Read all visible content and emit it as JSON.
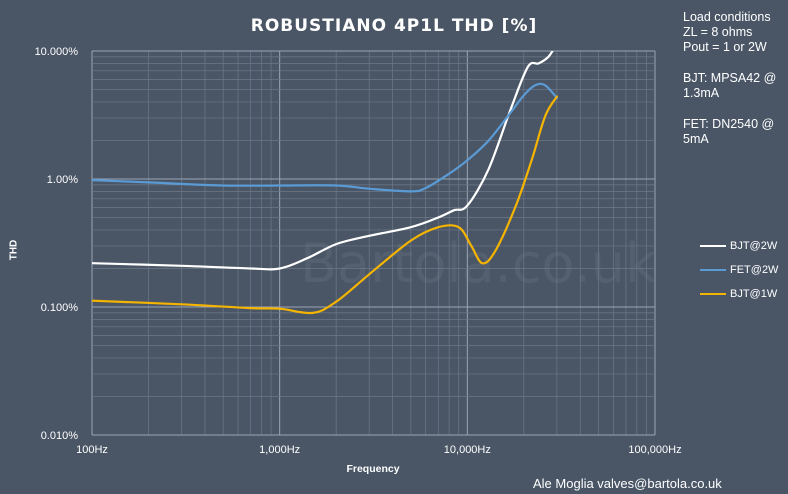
{
  "chart_data": {
    "type": "line",
    "title": "ROBUSTIANO  4P1L THD [%]",
    "xlabel": "Frequency",
    "ylabel": "THD",
    "x_scale": "log",
    "y_scale": "log",
    "xlim": [
      100,
      100000
    ],
    "ylim": [
      0.01,
      10
    ],
    "x_ticks": [
      100,
      1000,
      10000,
      100000
    ],
    "x_tick_labels": [
      "100Hz",
      "1,000Hz",
      "10,000Hz",
      "100,000Hz"
    ],
    "y_ticks": [
      0.01,
      0.1,
      1,
      10
    ],
    "y_tick_labels": [
      "0.010%",
      "0.100%",
      "1.00%",
      "10.000%"
    ],
    "grid": true,
    "legend_position": "right",
    "series": [
      {
        "name": "BJT@2W",
        "color": "#ffffff",
        "x": [
          100,
          300,
          700,
          1000,
          1400,
          2000,
          3000,
          5000,
          7000,
          8500,
          10000,
          13000,
          17000,
          21000,
          24000,
          27000,
          29000
        ],
        "y": [
          0.22,
          0.21,
          0.2,
          0.2,
          0.24,
          0.31,
          0.36,
          0.42,
          0.5,
          0.57,
          0.62,
          1.2,
          3.5,
          7.5,
          8.0,
          9.0,
          10.5
        ]
      },
      {
        "name": "FET@2W",
        "color": "#5b9bd5",
        "x": [
          100,
          200,
          500,
          1000,
          2000,
          3000,
          5000,
          6000,
          8000,
          10000,
          13000,
          17000,
          20000,
          23000,
          26000,
          30000
        ],
        "y": [
          0.98,
          0.94,
          0.89,
          0.89,
          0.89,
          0.84,
          0.8,
          0.85,
          1.1,
          1.4,
          2.0,
          3.3,
          4.5,
          5.4,
          5.4,
          4.3
        ]
      },
      {
        "name": "BJT@1W",
        "color": "#f5b400",
        "x": [
          100,
          300,
          700,
          1000,
          1500,
          2000,
          3000,
          5000,
          7000,
          9000,
          10500,
          12000,
          14000,
          18000,
          22000,
          26000,
          30000
        ],
        "y": [
          0.112,
          0.105,
          0.098,
          0.097,
          0.09,
          0.11,
          0.18,
          0.33,
          0.42,
          0.42,
          0.3,
          0.22,
          0.27,
          0.6,
          1.4,
          3.1,
          4.4
        ]
      }
    ]
  },
  "notes": {
    "load_heading": "Load conditions",
    "load_zl": "ZL = 8 ohms",
    "load_pout": "Pout = 1 or 2W",
    "bjt": "BJT: MPSA42 @ 1.3mA",
    "fet": "FET: DN2540 @ 5mA"
  },
  "watermark": "Bartola.co.uk",
  "credit": "Ale Moglia valves@bartola.co.uk",
  "colors": {
    "background": "#4a5666",
    "grid_major": "#9aa6b4",
    "grid_minor": "#6d7888"
  }
}
